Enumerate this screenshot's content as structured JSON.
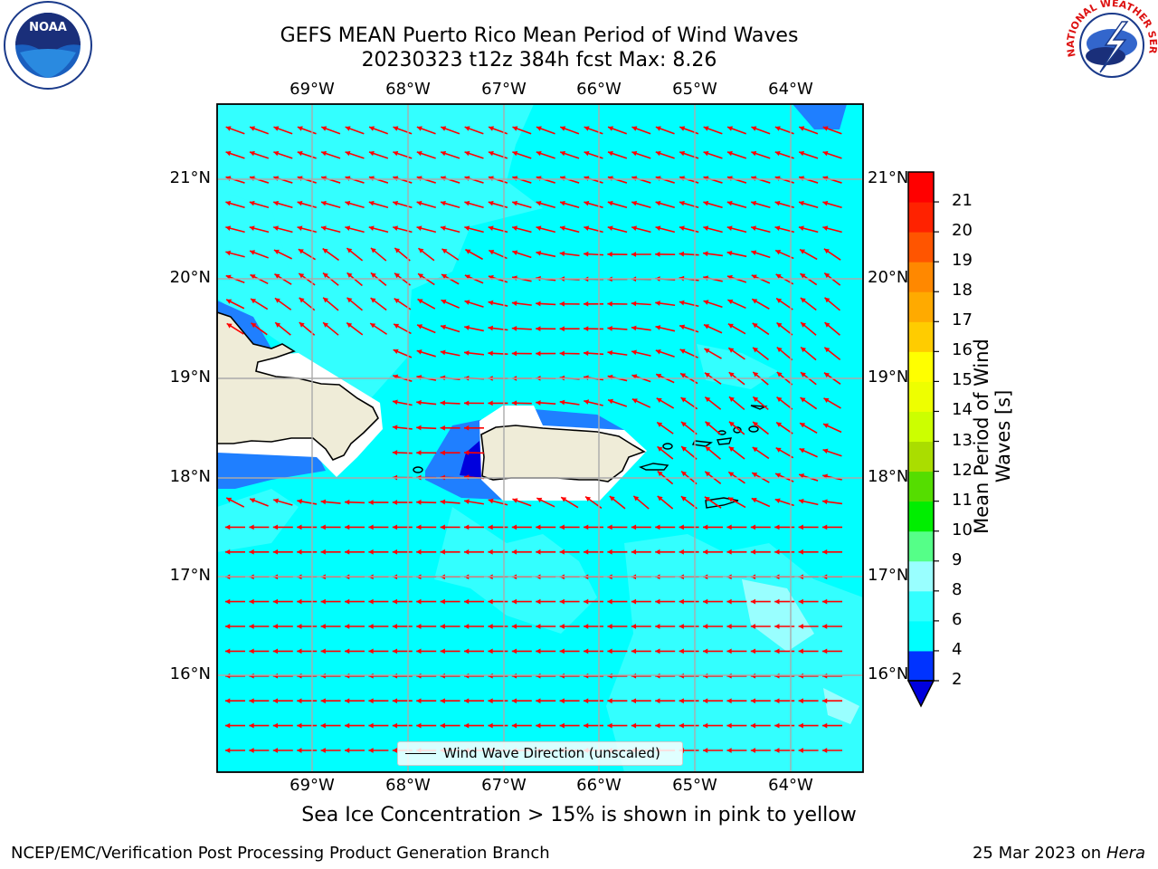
{
  "title_line1": "GEFS MEAN Puerto Rico Mean Period of Wind Waves",
  "title_line2": "20230323 t12z 384h fcst   Max: 8.26",
  "longitude_labels": [
    "69°W",
    "68°W",
    "67°W",
    "66°W",
    "65°W",
    "64°W"
  ],
  "latitude_labels": [
    "21°N",
    "20°N",
    "19°N",
    "18°N",
    "17°N",
    "16°N"
  ],
  "colorbar": {
    "label": "Mean Period of Wind Waves [s]",
    "ticks": [
      "2",
      "4",
      "6",
      "8",
      "9",
      "10",
      "11",
      "12",
      "13",
      "14",
      "15",
      "16",
      "17",
      "18",
      "19",
      "20",
      "21"
    ],
    "colors": [
      "#0033ff",
      "#00ffff",
      "#33ffff",
      "#99ffff",
      "#55ff88",
      "#00ee00",
      "#55dd00",
      "#aadd00",
      "#ccff00",
      "#eeff00",
      "#ffff00",
      "#ffcc00",
      "#ffaa00",
      "#ff8800",
      "#ff5500",
      "#ff2200",
      "#ff0000"
    ],
    "under_color": "#0000dd"
  },
  "legend_label": "Wind Wave Direction (unscaled)",
  "sea_ice_note": "Sea Ice Concentration > 15% is shown in pink to yellow",
  "footer_left": "NCEP/EMC/Verification Post Processing Product Generation Branch",
  "footer_date": "25 Mar 2023 on",
  "footer_host": "Hera",
  "logos": {
    "left": "NOAA",
    "right": "NATIONAL WEATHER SERVICE"
  },
  "colors": {
    "ocean": "#00ffff",
    "land": "#efecd8",
    "arrow": "#ff0000",
    "grid": "#aaaaaa"
  }
}
